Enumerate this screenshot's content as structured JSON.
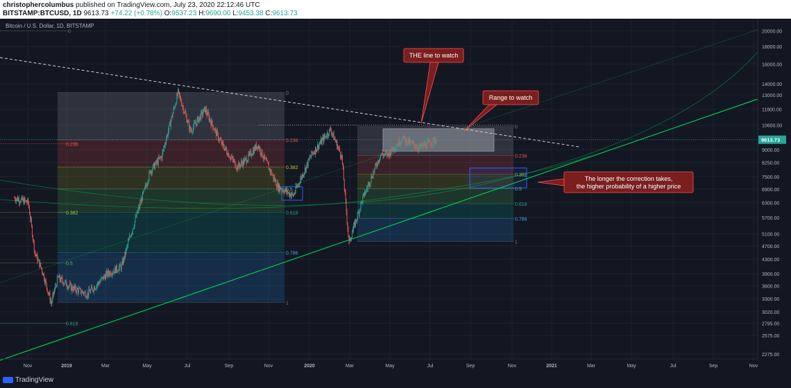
{
  "header": {
    "author": "christophercolumbus",
    "published_text": "published on TradingView.com, July 23, 2020 22:12:46 UTC",
    "symbol": "BITSTAMP:BTCUSD, 1D",
    "last": "9613.73",
    "change": "+74.22 (+0.78%)",
    "o_label": "O:",
    "o_val": "9537.23",
    "h_label": "H:",
    "h_val": "9690.00",
    "l_label": "L:",
    "l_val": "9453.38",
    "c_label": "C:",
    "c_val": "9613.73"
  },
  "footer": {
    "brand": "TradingView"
  },
  "chart_data": {
    "type": "candlestick",
    "title": "Bitcoin / U.S. Dollar, 1D, BITSTAMP",
    "price_scale": "log",
    "ylim": [
      2200,
      21500
    ],
    "y_ticks": [
      20000,
      18000,
      16000,
      14000,
      13000,
      11800,
      10600,
      9600,
      9000,
      8250,
      7500,
      6900,
      6300,
      5700,
      5100,
      4700,
      4300,
      3900,
      3600,
      3300,
      3020,
      2795,
      2575,
      2275
    ],
    "x_ticks": [
      "Nov",
      "2019",
      "Mar",
      "May",
      "Jul",
      "Sep",
      "Nov",
      "2020",
      "Mar",
      "May",
      "Jul",
      "Sep",
      "Nov",
      "2021",
      "Mar",
      "May",
      "Jul",
      "Sep",
      "Nov"
    ],
    "last_price_label": "9613.73",
    "price_path": [
      [
        "2018-10-20",
        6500
      ],
      [
        "2018-11-10",
        6300
      ],
      [
        "2018-11-20",
        4500
      ],
      [
        "2018-12-01",
        4000
      ],
      [
        "2018-12-15",
        3200
      ],
      [
        "2018-12-25",
        3800
      ],
      [
        "2019-01-15",
        3550
      ],
      [
        "2019-02-08",
        3400
      ],
      [
        "2019-03-10",
        3900
      ],
      [
        "2019-04-01",
        4100
      ],
      [
        "2019-04-15",
        5100
      ],
      [
        "2019-05-15",
        7800
      ],
      [
        "2019-06-01",
        8600
      ],
      [
        "2019-06-26",
        13200
      ],
      [
        "2019-07-15",
        10200
      ],
      [
        "2019-08-06",
        11800
      ],
      [
        "2019-08-29",
        9500
      ],
      [
        "2019-09-24",
        8000
      ],
      [
        "2019-10-10",
        8500
      ],
      [
        "2019-10-25",
        9300
      ],
      [
        "2019-11-25",
        7000
      ],
      [
        "2019-12-18",
        6600
      ],
      [
        "2020-01-15",
        8700
      ],
      [
        "2020-02-13",
        10300
      ],
      [
        "2020-03-01",
        8600
      ],
      [
        "2020-03-12",
        4800
      ],
      [
        "2020-04-01",
        6400
      ],
      [
        "2020-04-29",
        8700
      ],
      [
        "2020-05-10",
        8700
      ],
      [
        "2020-06-01",
        9700
      ],
      [
        "2020-06-27",
        9100
      ],
      [
        "2020-07-23",
        9613.73
      ]
    ],
    "fibonacci_left": {
      "levels": [
        {
          "label": "0",
          "price": 13200
        },
        {
          "label": "0.236",
          "price": 9600
        },
        {
          "label": "0.382",
          "price": 8000
        },
        {
          "label": "0.5",
          "price": 6900
        },
        {
          "label": "0.618",
          "price": 5900
        },
        {
          "label": "0.786",
          "price": 4500
        },
        {
          "label": "1",
          "price": 3220
        }
      ]
    },
    "fibonacci_right": {
      "levels": [
        {
          "label": "0",
          "price": 10500
        },
        {
          "label": "0.236",
          "price": 8650
        },
        {
          "label": "0.382",
          "price": 7620
        },
        {
          "label": "0.5",
          "price": 6920
        },
        {
          "label": "0.618",
          "price": 6250
        },
        {
          "label": "0.786",
          "price": 5650
        },
        {
          "label": "1",
          "price": 4850
        }
      ]
    },
    "extended_labels": [
      {
        "label": "0",
        "price": 20000
      },
      {
        "label": "0.236",
        "price": 9350
      },
      {
        "label": "0.382",
        "price": 5900
      },
      {
        "label": "0.5",
        "price": 4200
      },
      {
        "label": "0.618",
        "price": 2800
      }
    ],
    "annotations": [
      {
        "text": "THE line to watch"
      },
      {
        "text": "Range to watch"
      },
      {
        "text": "The longer the correction takes,"
      },
      {
        "text": "the higher probability of a higher price"
      }
    ],
    "colors": {
      "background": "#131722",
      "up": "#26a69a",
      "down": "#ef5350",
      "trendline": "#00c853",
      "resistance": "#b2b5be",
      "annotation_bg": "#7a1e1e",
      "annotation_border": "#ff5252",
      "accent": "#2962ff"
    }
  }
}
